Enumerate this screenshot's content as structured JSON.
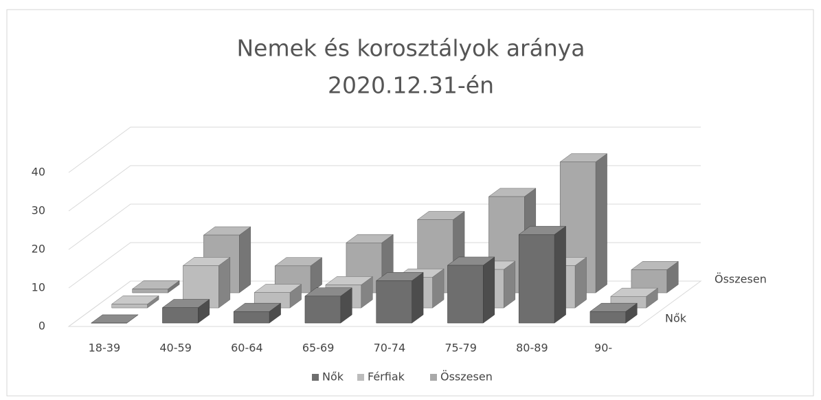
{
  "chart_data": {
    "type": "bar3d",
    "title": "Nemek és korosztályok aránya",
    "subtitle": "2020.12.31-én",
    "categories": [
      "18-39",
      "40-59",
      "60-64",
      "65-69",
      "70-74",
      "75-79",
      "80-89",
      "90-"
    ],
    "series": [
      {
        "name": "Nők",
        "color": "#6e6e6e",
        "values": [
          0,
          4,
          3,
          7,
          11,
          15,
          23,
          3
        ]
      },
      {
        "name": "Férfiak",
        "color": "#bcbcbc",
        "values": [
          1,
          11,
          4,
          6,
          8,
          10,
          11,
          3
        ]
      },
      {
        "name": "Összesen",
        "color": "#a9a9a9",
        "values": [
          1,
          15,
          7,
          13,
          19,
          25,
          34,
          6
        ]
      }
    ],
    "ylim": [
      0,
      40
    ],
    "yticks": [
      0,
      10,
      20,
      30,
      40
    ],
    "grid": true,
    "legend": "bottom"
  }
}
